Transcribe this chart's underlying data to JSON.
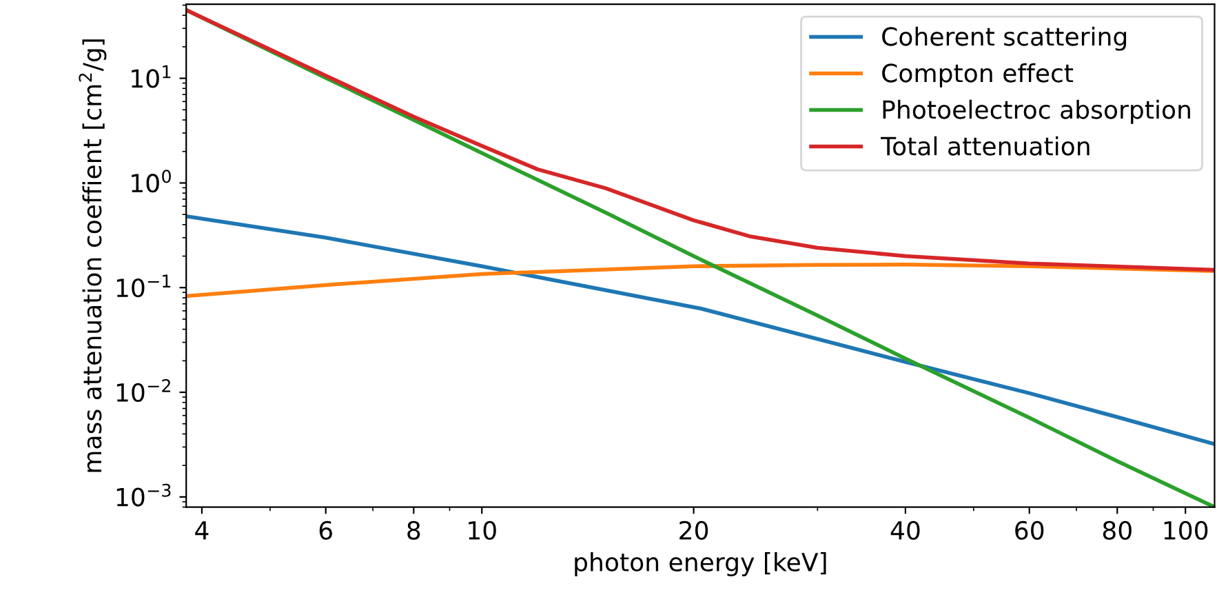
{
  "chart_data": {
    "type": "line",
    "xlabel": "photon energy [keV]",
    "ylabel": "mass attenuation coeffient [cm$^{2}$/g]",
    "log": "xy",
    "xlim": [
      3.8,
      110
    ],
    "ylim": [
      0.0008,
      51
    ],
    "xticks": [
      4,
      6,
      8,
      10,
      20,
      40,
      60,
      80,
      100
    ],
    "yticks": [
      {
        "value": 0.001,
        "label": "10$^{−3}$"
      },
      {
        "value": 0.01,
        "label": "10$^{−2}$"
      },
      {
        "value": 0.1,
        "label": "10$^{−1}$"
      },
      {
        "value": 1,
        "label": "10$^{0}$"
      },
      {
        "value": 10,
        "label": "10$^{1}$"
      }
    ],
    "grid": false,
    "legend": "top right",
    "marker": "none",
    "line_style": "solid",
    "series": [
      {
        "name": "Coherent scattering",
        "color": "#1f77b4",
        "x": [
          3.8,
          6,
          10,
          20.5,
          40,
          60,
          80,
          110
        ],
        "values": [
          0.48,
          0.3,
          0.16,
          0.063,
          0.0195,
          0.0098,
          0.0058,
          0.0032
        ]
      },
      {
        "name": "Compton effect",
        "color": "#ff7f0e",
        "x": [
          3.8,
          6,
          10,
          20,
          30,
          40,
          60,
          110
        ],
        "values": [
          0.083,
          0.106,
          0.135,
          0.16,
          0.165,
          0.166,
          0.16,
          0.144
        ]
      },
      {
        "name": "Photoelectroc absorption",
        "color": "#2ca02c",
        "x": [
          3.8,
          5,
          6,
          8,
          10,
          15,
          20,
          30,
          40,
          60,
          80,
          110
        ],
        "values": [
          45,
          18.3,
          10.1,
          4.0,
          1.93,
          0.52,
          0.2,
          0.054,
          0.021,
          0.0057,
          0.0022,
          0.0008
        ]
      },
      {
        "name": "Total attenuation",
        "color": "#d62728",
        "x": [
          3.8,
          6,
          8,
          10,
          12,
          15,
          20,
          24,
          30,
          40,
          60,
          110
        ],
        "values": [
          45,
          10.6,
          4.3,
          2.26,
          1.35,
          0.89,
          0.44,
          0.31,
          0.24,
          0.2,
          0.17,
          0.148
        ]
      }
    ]
  }
}
